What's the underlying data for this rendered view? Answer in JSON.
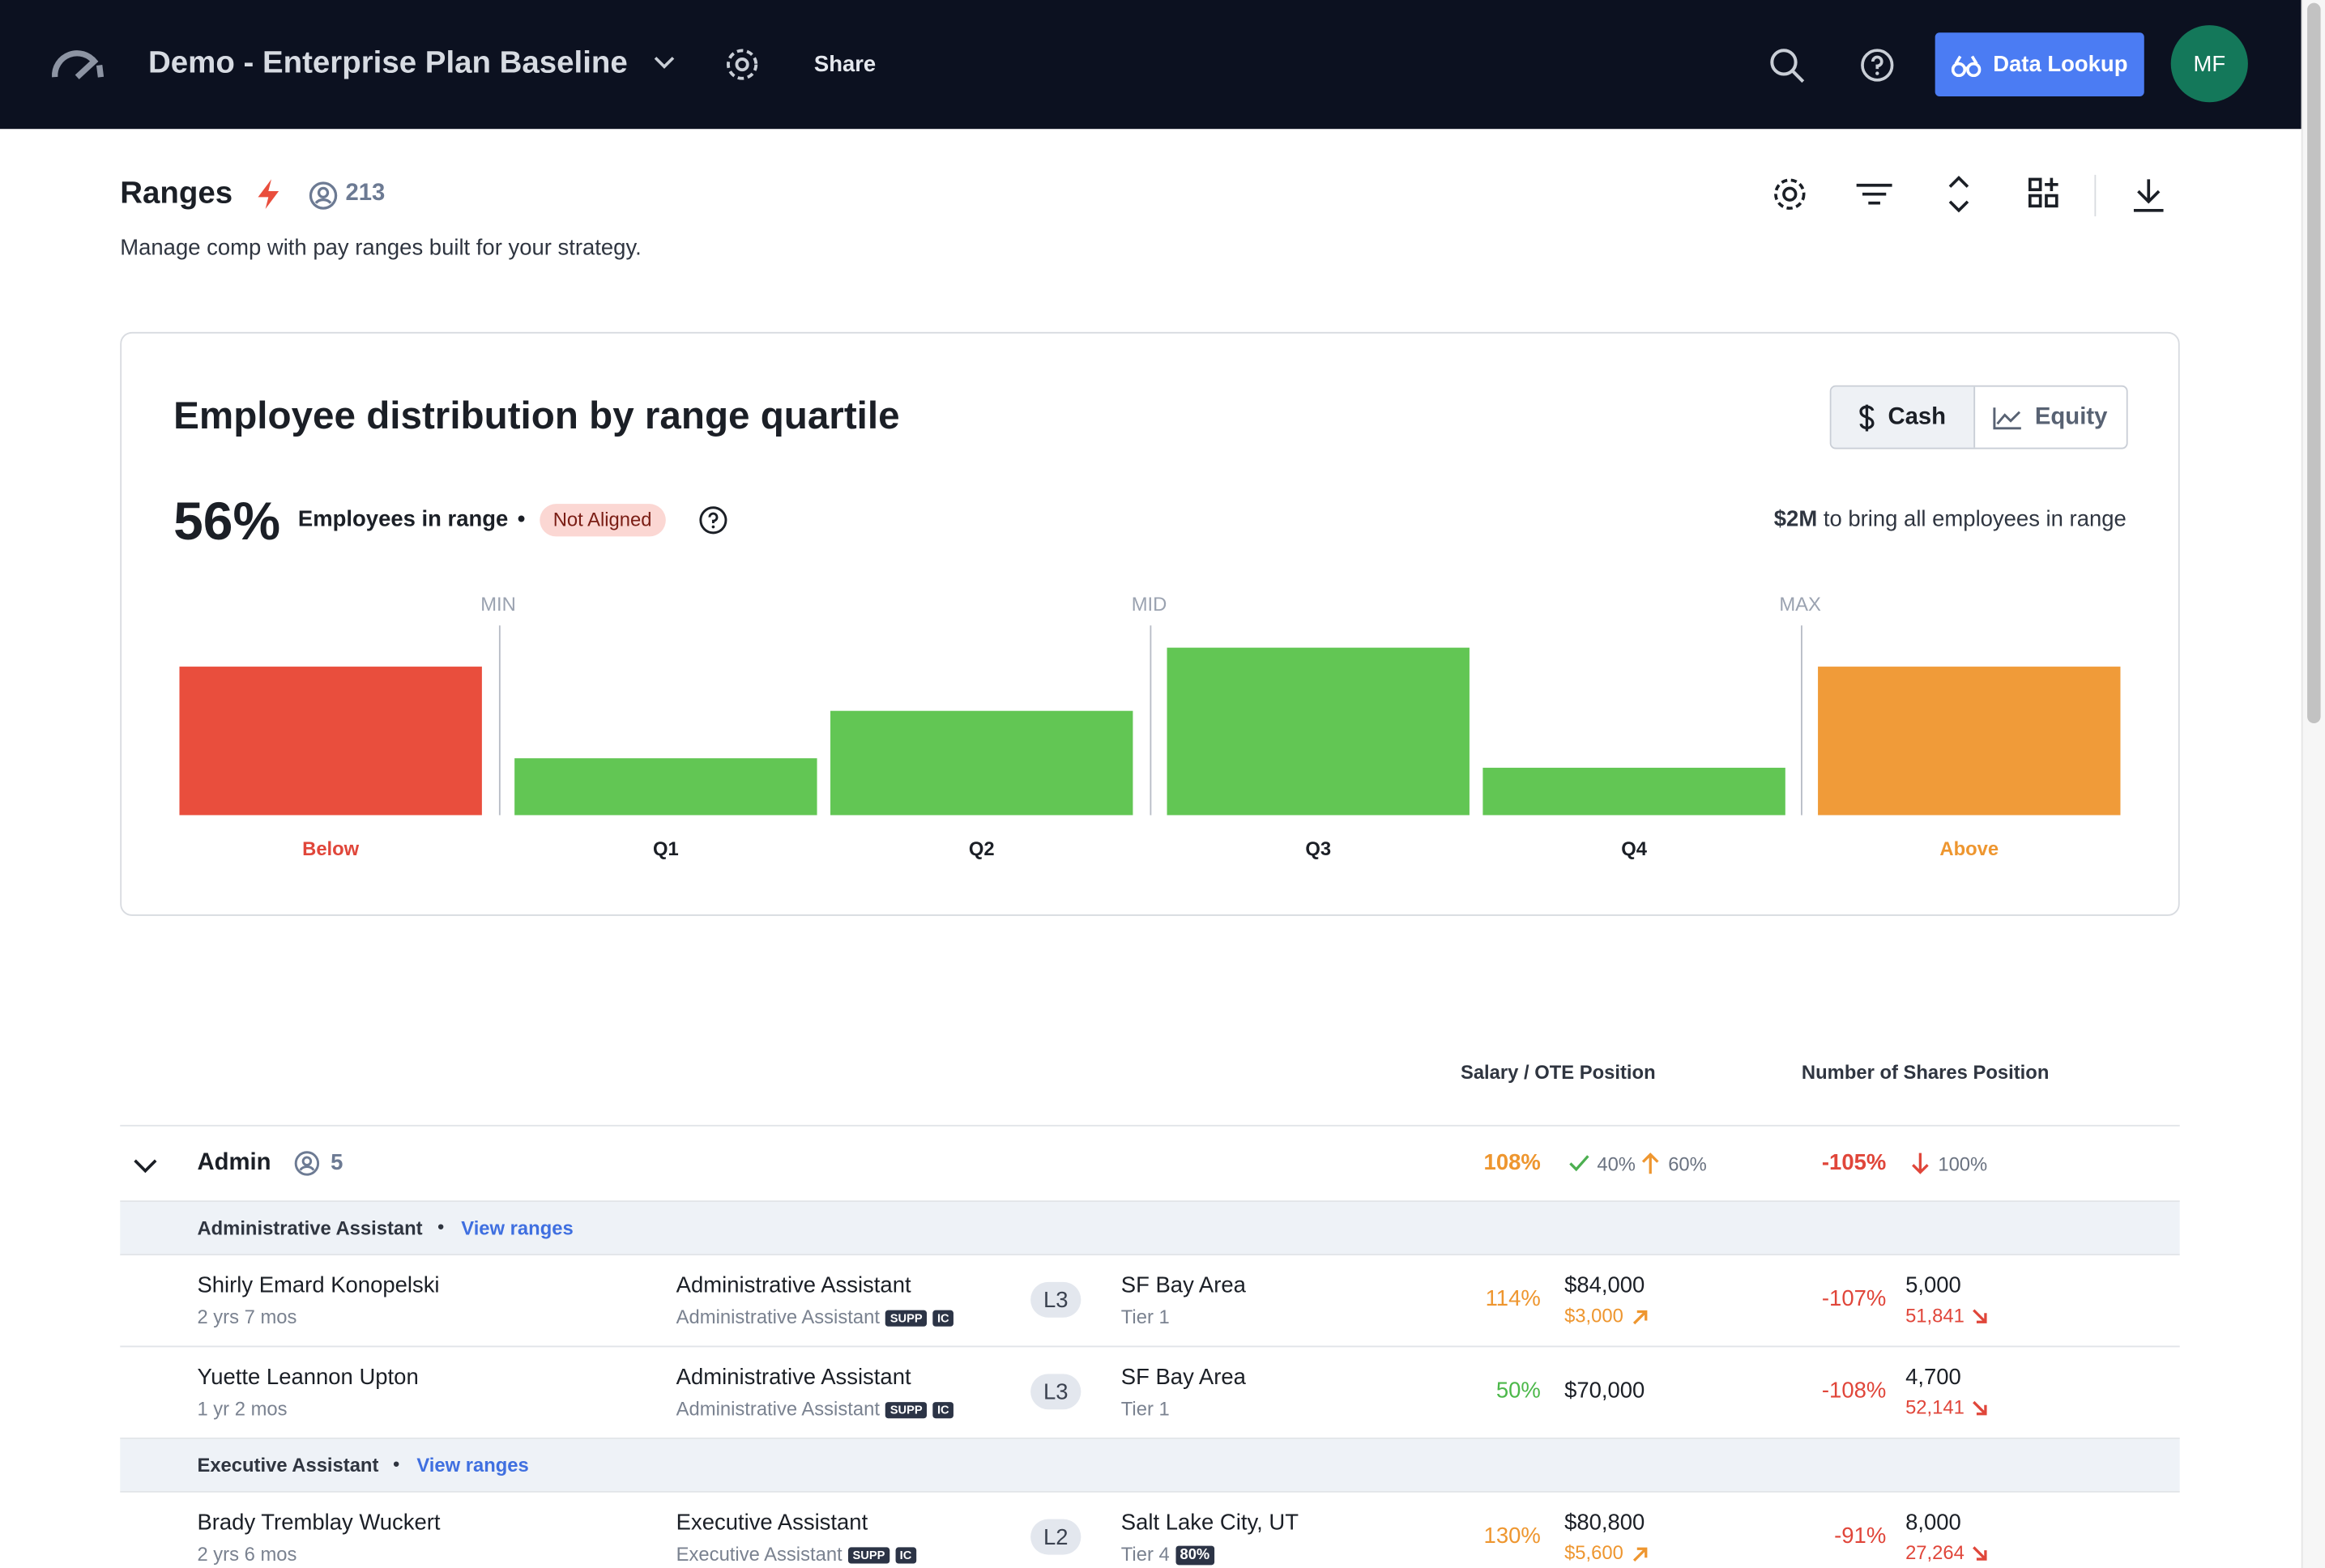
{
  "header": {
    "app_title": "Demo - Enterprise Plan Baseline",
    "share": "Share",
    "data_lookup": "Data Lookup",
    "avatar": "MF"
  },
  "page": {
    "title": "Ranges",
    "count": "213",
    "subtitle": "Manage comp with pay ranges built for your strategy."
  },
  "card": {
    "toggle": [
      "Cash",
      "Equity"
    ],
    "stat": "56%",
    "stat_label": "Employees in range",
    "badge": "Not Aligned",
    "cost": "$2M",
    "cost_text": "to bring all employees in range"
  },
  "chart_data": {
    "type": "bar",
    "title": "Employee distribution by range quartile",
    "categories": [
      "Below",
      "Q1",
      "Q2",
      "Q3",
      "Q4",
      "Above"
    ],
    "values": [
      47,
      18,
      33,
      53,
      15,
      47
    ],
    "colors": [
      "#e94e3d",
      "#62c654",
      "#62c654",
      "#62c654",
      "#62c654",
      "#f09b39"
    ],
    "label_colors": [
      "#e0463a",
      "#1b1f26",
      "#1b1f26",
      "#1b1f26",
      "#1b1f26",
      "#ee962f"
    ],
    "markers": [
      "MIN",
      "MID",
      "MAX"
    ]
  },
  "table": {
    "columns": [
      "Salary / OTE Position",
      "Number of Shares Position"
    ],
    "group": {
      "name": "Admin",
      "count": "5",
      "salary_pct": "108%",
      "in_pct": "40%",
      "up_pct": "60%",
      "shares_pct": "-105%",
      "down_pct": "100%"
    },
    "subgroups": [
      {
        "title": "Administrative Assistant",
        "link": "View ranges",
        "rows": [
          {
            "name": "Shirly Emard Konopelski",
            "tenure": "2 yrs 7 mos",
            "job": "Administrative Assistant",
            "job_sub": "Administrative Assistant",
            "tags": [
              "SUPP",
              "IC"
            ],
            "level": "L3",
            "location": "SF Bay Area",
            "tier": "Tier 1",
            "salary_pct": "114%",
            "salary": "$84,000",
            "salary_delta": "$3,000",
            "shares_pct": "-107%",
            "shares": "5,000",
            "shares_delta": "51,841"
          },
          {
            "name": "Yuette Leannon Upton",
            "tenure": "1 yr 2 mos",
            "job": "Administrative Assistant",
            "job_sub": "Administrative Assistant",
            "tags": [
              "SUPP",
              "IC"
            ],
            "level": "L3",
            "location": "SF Bay Area",
            "tier": "Tier 1",
            "salary_pct": "50%",
            "salary": "$70,000",
            "shares_pct": "-108%",
            "shares": "4,700",
            "shares_delta": "52,141"
          }
        ]
      },
      {
        "title": "Executive Assistant",
        "link": "View ranges",
        "rows": [
          {
            "name": "Brady Tremblay Wuckert",
            "tenure": "2 yrs 6 mos",
            "job": "Executive Assistant",
            "job_sub": "Executive Assistant",
            "tags": [
              "SUPP",
              "IC"
            ],
            "level": "L2",
            "location": "Salt Lake City, UT",
            "tier": "Tier 4",
            "tier_badge": "80%",
            "salary_pct": "130%",
            "salary": "$80,800",
            "salary_delta": "$5,600",
            "shares_pct": "-91%",
            "shares": "8,000",
            "shares_delta": "27,264"
          }
        ]
      }
    ]
  }
}
